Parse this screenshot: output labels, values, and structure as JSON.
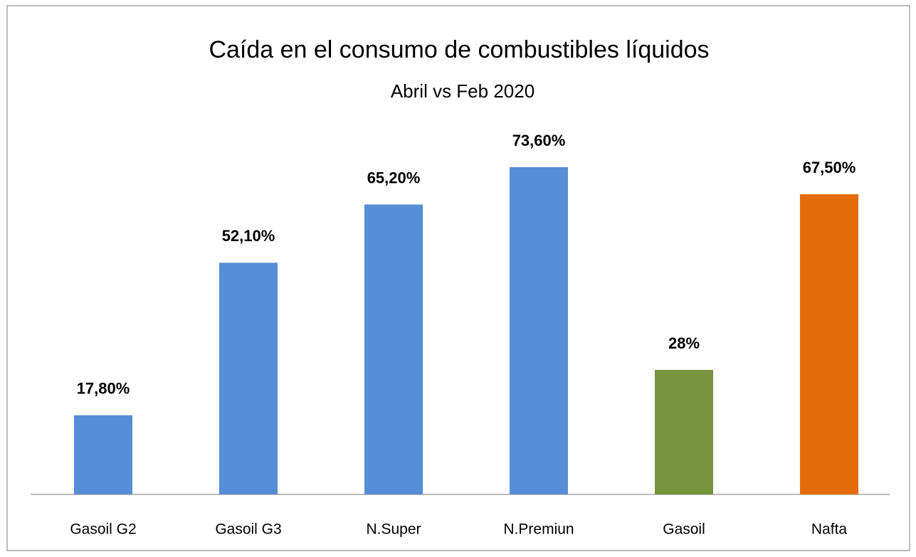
{
  "chart_data": {
    "type": "bar",
    "title": "Caída en el consumo de combustibles líquidos",
    "subtitle": "Abril vs  Feb 2020",
    "categories": [
      "Gasoil G2",
      "Gasoil G3",
      "N.Super",
      "N.Premiun",
      "Gasoil",
      "Nafta"
    ],
    "values": [
      17.8,
      52.1,
      65.2,
      73.6,
      28,
      67.5
    ],
    "value_labels": [
      "17,80%",
      "52,10%",
      "65,20%",
      "73,60%",
      "28%",
      "67,50%"
    ],
    "colors": [
      "#558ed5",
      "#558ed5",
      "#558ed5",
      "#558ed5",
      "#77933c",
      "#e36c09"
    ]
  }
}
